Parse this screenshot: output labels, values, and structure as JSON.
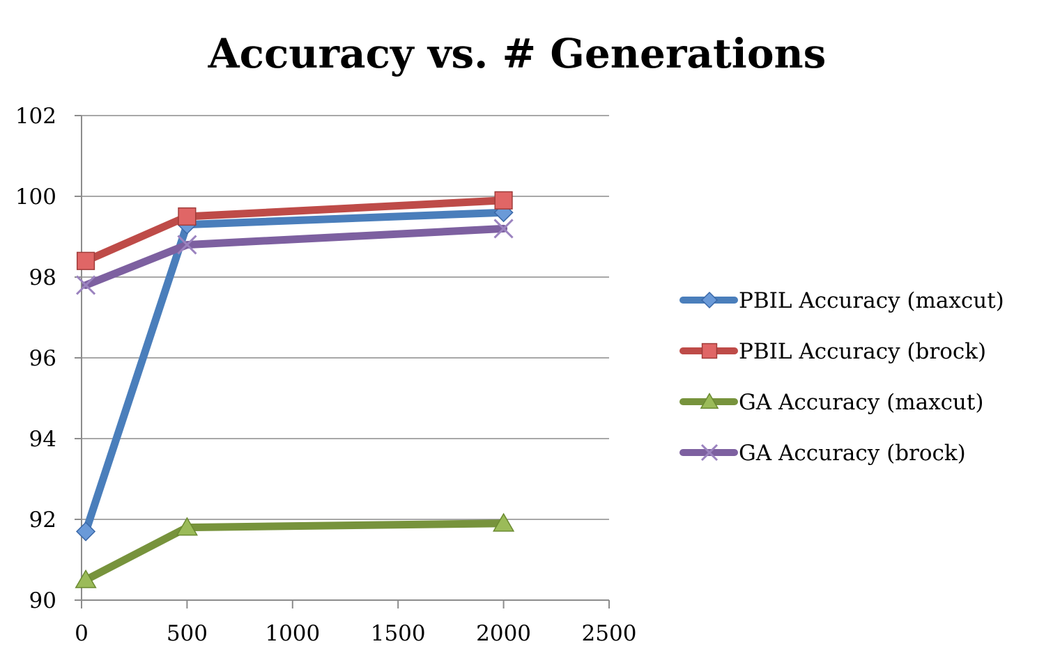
{
  "chart_data": {
    "type": "line",
    "title": "Accuracy vs. # Generations",
    "xlabel": "",
    "ylabel": "",
    "xlim": [
      0,
      2500
    ],
    "ylim": [
      90,
      102
    ],
    "x_ticks": [
      0,
      500,
      1000,
      1500,
      2000,
      2500
    ],
    "y_ticks": [
      90,
      92,
      94,
      96,
      98,
      100,
      102
    ],
    "grid": "horizontal",
    "legend_position": "right",
    "series": [
      {
        "name": "PBIL Accuracy (maxcut)",
        "color": "#4a7ebb",
        "marker": "diamond",
        "marker_fill": "#6a9ad8",
        "marker_stroke": "#3a68a8",
        "points": [
          {
            "x": 20,
            "y": 91.7
          },
          {
            "x": 500,
            "y": 99.3
          },
          {
            "x": 2000,
            "y": 99.6
          }
        ]
      },
      {
        "name": "PBIL Accuracy (brock)",
        "color": "#be4b48",
        "marker": "square",
        "marker_fill": "#e06666",
        "marker_stroke": "#a03c3a",
        "points": [
          {
            "x": 20,
            "y": 98.4
          },
          {
            "x": 500,
            "y": 99.5
          },
          {
            "x": 2000,
            "y": 99.9
          }
        ]
      },
      {
        "name": "GA Accuracy (maxcut)",
        "color": "#77933c",
        "marker": "triangle",
        "marker_fill": "#9bbb59",
        "marker_stroke": "#6a8a30",
        "points": [
          {
            "x": 20,
            "y": 90.5
          },
          {
            "x": 500,
            "y": 91.8
          },
          {
            "x": 2000,
            "y": 91.9
          }
        ]
      },
      {
        "name": "GA Accuracy (brock)",
        "color": "#7d60a0",
        "marker": "x",
        "marker_fill": "#9b83bf",
        "marker_stroke": "#9b83bf",
        "points": [
          {
            "x": 20,
            "y": 97.8
          },
          {
            "x": 500,
            "y": 98.8
          },
          {
            "x": 2000,
            "y": 99.2
          }
        ]
      }
    ]
  }
}
